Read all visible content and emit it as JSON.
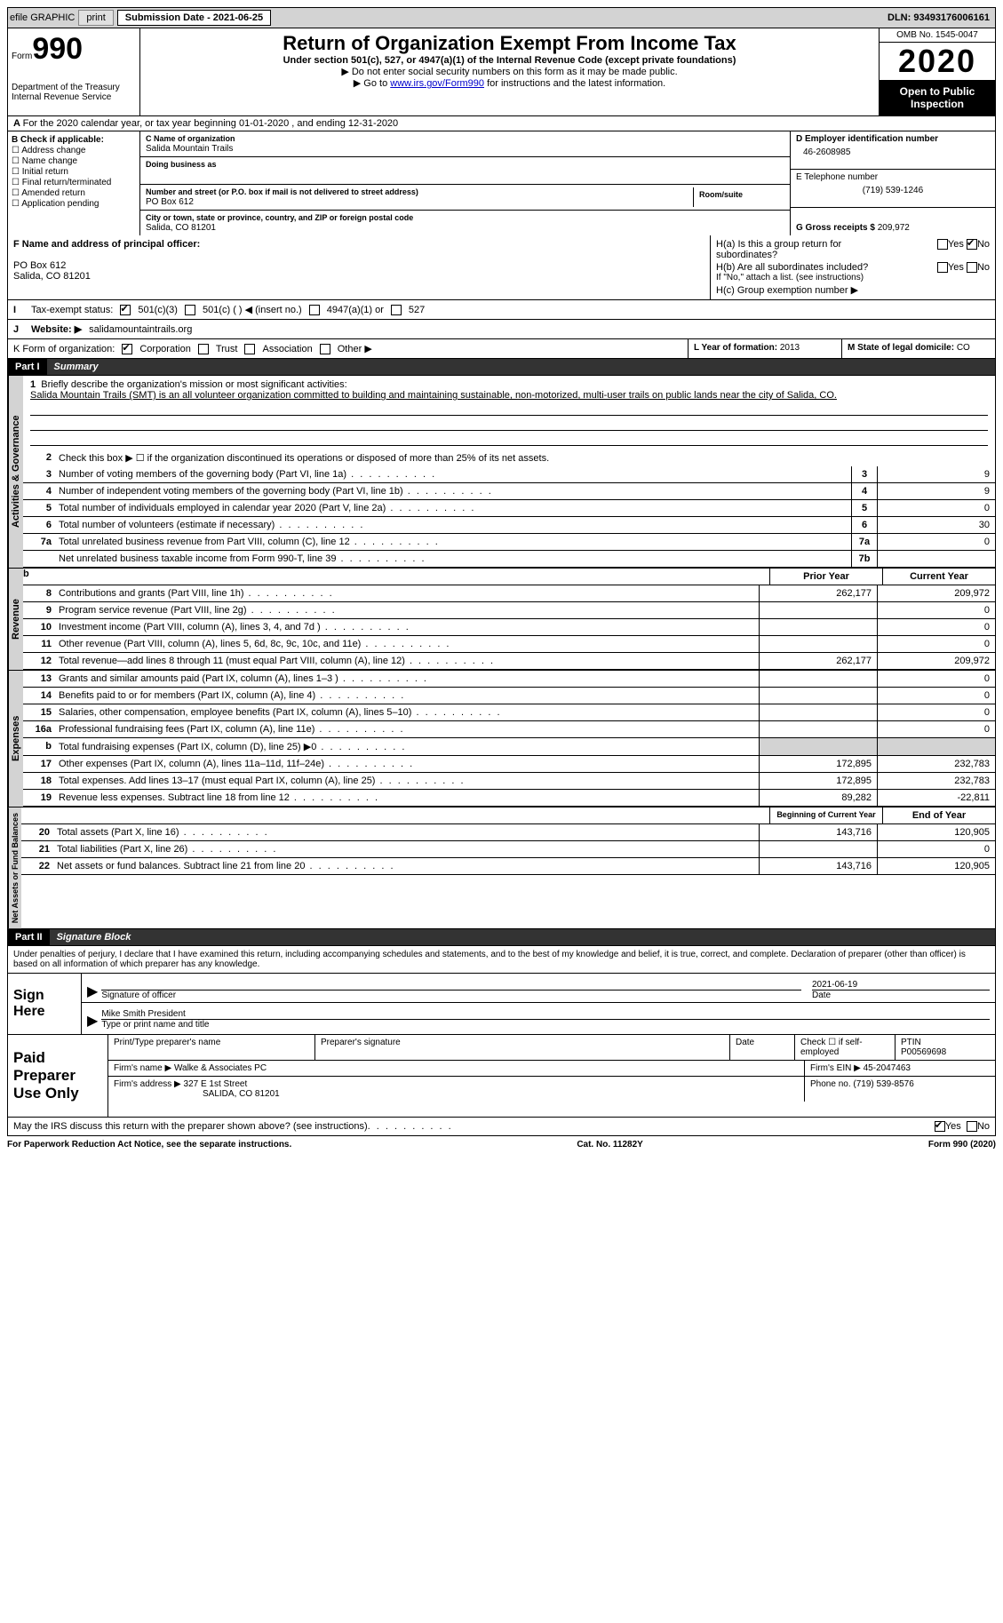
{
  "top": {
    "efile": "efile GRAPHIC",
    "print": "print",
    "sub_label": "Submission Date - ",
    "sub_date": "2021-06-25",
    "dln": "DLN: 93493176006161"
  },
  "header": {
    "form": "Form",
    "formnum": "990",
    "dept": "Department of the Treasury\nInternal Revenue Service",
    "title": "Return of Organization Exempt From Income Tax",
    "subtitle": "Under section 501(c), 527, or 4947(a)(1) of the Internal Revenue Code (except private foundations)",
    "line1": "▶ Do not enter social security numbers on this form as it may be made public.",
    "line2_pre": "▶ Go to ",
    "line2_link": "www.irs.gov/Form990",
    "line2_post": " for instructions and the latest information.",
    "omb": "OMB No. 1545-0047",
    "year": "2020",
    "inspect": "Open to Public Inspection"
  },
  "periodA": "For the 2020 calendar year, or tax year beginning 01-01-2020   , and ending 12-31-2020",
  "B": {
    "label": "B Check if applicable:",
    "opts": [
      "Address change",
      "Name change",
      "Initial return",
      "Final return/terminated",
      "Amended return",
      "Application pending"
    ]
  },
  "C": {
    "name_label": "C Name of organization",
    "name": "Salida Mountain Trails",
    "dba_label": "Doing business as",
    "dba": "",
    "addr_label": "Number and street (or P.O. box if mail is not delivered to street address)",
    "room_label": "Room/suite",
    "addr": "PO Box 612",
    "city_label": "City or town, state or province, country, and ZIP or foreign postal code",
    "city": "Salida, CO  81201"
  },
  "D": {
    "label": "D Employer identification number",
    "val": "46-2608985"
  },
  "E": {
    "label": "E Telephone number",
    "val": "(719) 539-1246"
  },
  "G": {
    "label": "G Gross receipts $",
    "val": "209,972"
  },
  "F": {
    "label": "F  Name and address of principal officer:",
    "addr1": "PO Box 612",
    "addr2": "Salida, CO  81201"
  },
  "H": {
    "a": "H(a)  Is this a group return for subordinates?",
    "a_yes": "Yes",
    "a_no": "No",
    "b": "H(b)  Are all subordinates included?",
    "b_yes": "Yes",
    "b_no": "No",
    "b_note": "If \"No,\" attach a list. (see instructions)",
    "c": "H(c)  Group exemption number ▶"
  },
  "I": {
    "label": "Tax-exempt status:",
    "o1": "501(c)(3)",
    "o2": "501(c) (  ) ◀ (insert no.)",
    "o3": "4947(a)(1) or",
    "o4": "527"
  },
  "J": {
    "label": "Website: ▶",
    "val": "salidamountaintrails.org"
  },
  "K": {
    "label": "K Form of organization:",
    "o1": "Corporation",
    "o2": "Trust",
    "o3": "Association",
    "o4": "Other ▶"
  },
  "L": {
    "label": "L Year of formation:",
    "val": "2013"
  },
  "M": {
    "label": "M State of legal domicile:",
    "val": "CO"
  },
  "part1": {
    "tag": "Part I",
    "title": "Summary",
    "l1_label": "Briefly describe the organization's mission or most significant activities:",
    "l1_text": "Salida Mountain Trails (SMT) is an all volunteer organization committed to building and maintaining sustainable, non-motorized, multi-user trails on public lands near the city of Salida, CO.",
    "l2": "Check this box ▶ ☐  if the organization discontinued its operations or disposed of more than 25% of its net assets.",
    "rows_gov": [
      {
        "n": "3",
        "d": "Number of voting members of the governing body (Part VI, line 1a)",
        "b": "3",
        "v": "9"
      },
      {
        "n": "4",
        "d": "Number of independent voting members of the governing body (Part VI, line 1b)",
        "b": "4",
        "v": "9"
      },
      {
        "n": "5",
        "d": "Total number of individuals employed in calendar year 2020 (Part V, line 2a)",
        "b": "5",
        "v": "0"
      },
      {
        "n": "6",
        "d": "Total number of volunteers (estimate if necessary)",
        "b": "6",
        "v": "30"
      },
      {
        "n": "7a",
        "d": "Total unrelated business revenue from Part VIII, column (C), line 12",
        "b": "7a",
        "v": "0"
      },
      {
        "n": "",
        "d": "Net unrelated business taxable income from Form 990-T, line 39",
        "b": "7b",
        "v": ""
      }
    ],
    "col_py": "Prior Year",
    "col_cy": "Current Year",
    "rows_rev": [
      {
        "n": "8",
        "d": "Contributions and grants (Part VIII, line 1h)",
        "py": "262,177",
        "cy": "209,972"
      },
      {
        "n": "9",
        "d": "Program service revenue (Part VIII, line 2g)",
        "py": "",
        "cy": "0"
      },
      {
        "n": "10",
        "d": "Investment income (Part VIII, column (A), lines 3, 4, and 7d )",
        "py": "",
        "cy": "0"
      },
      {
        "n": "11",
        "d": "Other revenue (Part VIII, column (A), lines 5, 6d, 8c, 9c, 10c, and 11e)",
        "py": "",
        "cy": "0"
      },
      {
        "n": "12",
        "d": "Total revenue—add lines 8 through 11 (must equal Part VIII, column (A), line 12)",
        "py": "262,177",
        "cy": "209,972"
      }
    ],
    "rows_exp": [
      {
        "n": "13",
        "d": "Grants and similar amounts paid (Part IX, column (A), lines 1–3 )",
        "py": "",
        "cy": "0"
      },
      {
        "n": "14",
        "d": "Benefits paid to or for members (Part IX, column (A), line 4)",
        "py": "",
        "cy": "0"
      },
      {
        "n": "15",
        "d": "Salaries, other compensation, employee benefits (Part IX, column (A), lines 5–10)",
        "py": "",
        "cy": "0"
      },
      {
        "n": "16a",
        "d": "Professional fundraising fees (Part IX, column (A), line 11e)",
        "py": "",
        "cy": "0"
      },
      {
        "n": "b",
        "d": "Total fundraising expenses (Part IX, column (D), line 25) ▶0",
        "py": "GREY",
        "cy": "GREY"
      },
      {
        "n": "17",
        "d": "Other expenses (Part IX, column (A), lines 11a–11d, 11f–24e)",
        "py": "172,895",
        "cy": "232,783"
      },
      {
        "n": "18",
        "d": "Total expenses. Add lines 13–17 (must equal Part IX, column (A), line 25)",
        "py": "172,895",
        "cy": "232,783"
      },
      {
        "n": "19",
        "d": "Revenue less expenses. Subtract line 18 from line 12",
        "py": "89,282",
        "cy": "-22,811"
      }
    ],
    "col_bcy": "Beginning of Current Year",
    "col_eoy": "End of Year",
    "rows_na": [
      {
        "n": "20",
        "d": "Total assets (Part X, line 16)",
        "py": "143,716",
        "cy": "120,905"
      },
      {
        "n": "21",
        "d": "Total liabilities (Part X, line 26)",
        "py": "",
        "cy": "0"
      },
      {
        "n": "22",
        "d": "Net assets or fund balances. Subtract line 21 from line 20",
        "py": "143,716",
        "cy": "120,905"
      }
    ]
  },
  "part2": {
    "tag": "Part II",
    "title": "Signature Block",
    "penalty": "Under penalties of perjury, I declare that I have examined this return, including accompanying schedules and statements, and to the best of my knowledge and belief, it is true, correct, and complete. Declaration of preparer (other than officer) is based on all information of which preparer has any knowledge.",
    "sign_here": "Sign Here",
    "sig_officer": "Signature of officer",
    "sig_date_lbl": "Date",
    "sig_date": "2021-06-19",
    "officer_name": "Mike Smith  President",
    "officer_lbl": "Type or print name and title",
    "paid_lbl": "Paid Preparer Use Only",
    "p_name_lbl": "Print/Type preparer's name",
    "p_sig_lbl": "Preparer's signature",
    "p_date_lbl": "Date",
    "p_self_lbl": "Check ☐ if self-employed",
    "p_ptin_lbl": "PTIN",
    "p_ptin": "P00569698",
    "firm_name_lbl": "Firm's name    ▶",
    "firm_name": "Walke & Associates PC",
    "firm_ein_lbl": "Firm's EIN ▶",
    "firm_ein": "45-2047463",
    "firm_addr_lbl": "Firm's address ▶",
    "firm_addr1": "327 E 1st Street",
    "firm_addr2": "SALIDA, CO  81201",
    "firm_phone_lbl": "Phone no.",
    "firm_phone": "(719) 539-8576",
    "discuss": "May the IRS discuss this return with the preparer shown above? (see instructions)",
    "d_yes": "Yes",
    "d_no": "No"
  },
  "footer": {
    "left": "For Paperwork Reduction Act Notice, see the separate instructions.",
    "mid": "Cat. No. 11282Y",
    "right": "Form 990 (2020)"
  },
  "tabs": {
    "gov": "Activities & Governance",
    "rev": "Revenue",
    "exp": "Expenses",
    "na": "Net Assets or Fund Balances"
  }
}
